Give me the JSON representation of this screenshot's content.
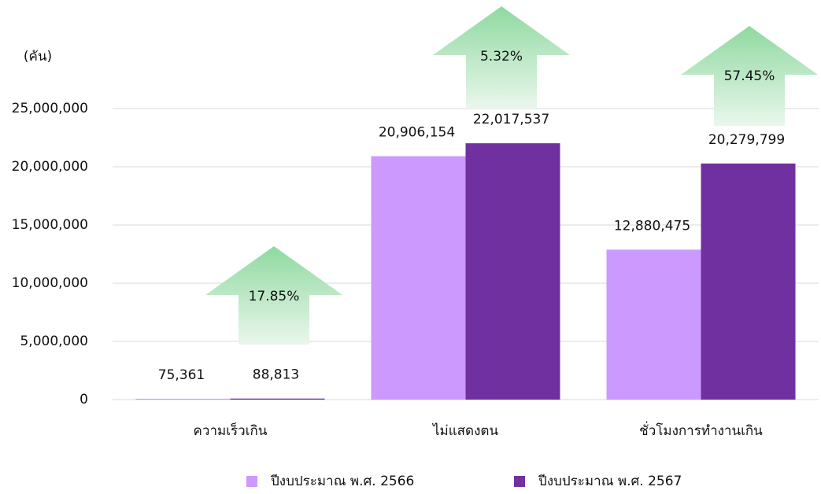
{
  "chart_data": {
    "type": "bar",
    "y_axis_label": "(คัน)",
    "categories": [
      "ความเร็วเกิน",
      "ไม่แสดงตน",
      "ชั่วโมงการทำงานเกิน"
    ],
    "series": [
      {
        "name": "ปีงบประมาณ พ.ศ. 2566",
        "color": "#cc99ff",
        "values": [
          75361,
          20906154,
          12880475
        ],
        "value_labels": [
          "75,361",
          "20,906,154",
          "12,880,475"
        ]
      },
      {
        "name": "ปีงบประมาณ พ.ศ. 2567",
        "color": "#7030a0",
        "values": [
          88813,
          22017537,
          20279799
        ],
        "value_labels": [
          "88,813",
          "22,017,537",
          "20,279,799"
        ]
      }
    ],
    "annotations": [
      "17.85%",
      "5.32%",
      "57.45%"
    ],
    "ylim": [
      0,
      25000000
    ],
    "yticks": [
      0,
      {
        "value": 5000000,
        "label": "5,000,000"
      },
      {
        "value": 10000000,
        "label": "10,000,000"
      },
      {
        "value": 15000000,
        "label": "15,000,000"
      },
      {
        "value": 20000000,
        "label": "20,000,000"
      },
      {
        "value": 25000000,
        "label": "25,000,000"
      }
    ],
    "grid": true,
    "legend": "bottom"
  }
}
